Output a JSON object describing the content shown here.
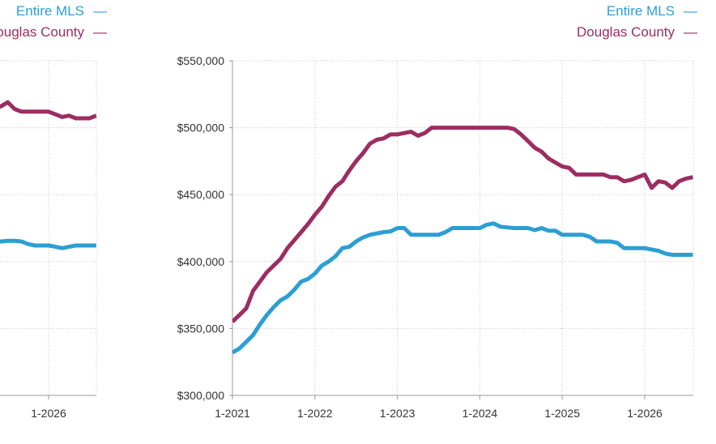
{
  "colors": {
    "entire_mls": "#2b9fd3",
    "douglas_county": "#9b2d62",
    "grid": "#c8c8c8",
    "axis": "#999999"
  },
  "chart_data": [
    {
      "type": "line",
      "title": "",
      "xlabel": "",
      "ylabel": "",
      "legend_position": "top-right",
      "legend": [
        {
          "name": "Entire MLS",
          "symbol": "—"
        },
        {
          "name": "Douglas County",
          "symbol": "—"
        }
      ],
      "x_ticks": [
        "1-2026"
      ],
      "grid": true,
      "series": [
        {
          "name": "Entire MLS",
          "x": [
            "2025-03",
            "2025-04",
            "2025-05",
            "2025-06",
            "2025-07",
            "2025-08",
            "2025-09",
            "2025-10",
            "2025-11",
            "2025-12",
            "2026-01",
            "2026-02",
            "2026-03",
            "2026-04",
            "2026-05",
            "2026-06",
            "2026-07",
            "2026-08"
          ],
          "values": [
            415000,
            415000,
            414000,
            415000,
            415500,
            415500,
            415000,
            413000,
            412000,
            412000,
            412000,
            411000,
            410000,
            411000,
            412000,
            412000,
            412000,
            412000
          ]
        },
        {
          "name": "Douglas County",
          "x": [
            "2025-03",
            "2025-04",
            "2025-05",
            "2025-06",
            "2025-07",
            "2025-08",
            "2025-09",
            "2025-10",
            "2025-11",
            "2025-12",
            "2026-01",
            "2026-02",
            "2026-03",
            "2026-04",
            "2026-05",
            "2026-06",
            "2026-07",
            "2026-08"
          ],
          "values": [
            515000,
            514000,
            514000,
            516000,
            519000,
            514000,
            512000,
            512000,
            512000,
            512000,
            512000,
            510000,
            508000,
            509000,
            507000,
            507000,
            507000,
            509000
          ]
        }
      ]
    },
    {
      "type": "line",
      "title": "",
      "xlabel": "",
      "ylabel": "",
      "legend_position": "top-right",
      "legend": [
        {
          "name": "Entire MLS",
          "symbol": "—"
        },
        {
          "name": "Douglas County",
          "symbol": "—"
        }
      ],
      "ylim": [
        300000,
        550000
      ],
      "y_ticks": [
        300000,
        350000,
        400000,
        450000,
        500000,
        550000
      ],
      "y_tick_labels": [
        "$300,000",
        "$350,000",
        "$400,000",
        "$450,000",
        "$500,000",
        "$550,000"
      ],
      "x_ticks": [
        "1-2021",
        "1-2022",
        "1-2023",
        "1-2024",
        "1-2025",
        "1-2026"
      ],
      "grid": true,
      "series": [
        {
          "name": "Entire MLS",
          "x": [
            "2021-01",
            "2021-02",
            "2021-03",
            "2021-04",
            "2021-05",
            "2021-06",
            "2021-07",
            "2021-08",
            "2021-09",
            "2021-10",
            "2021-11",
            "2021-12",
            "2022-01",
            "2022-02",
            "2022-03",
            "2022-04",
            "2022-05",
            "2022-06",
            "2022-07",
            "2022-08",
            "2022-09",
            "2022-10",
            "2022-11",
            "2022-12",
            "2023-01",
            "2023-02",
            "2023-03",
            "2023-04",
            "2023-05",
            "2023-06",
            "2023-07",
            "2023-08",
            "2023-09",
            "2023-10",
            "2023-11",
            "2023-12",
            "2024-01",
            "2024-02",
            "2024-03",
            "2024-04",
            "2024-05",
            "2024-06",
            "2024-07",
            "2024-08",
            "2024-09",
            "2024-10",
            "2024-11",
            "2024-12",
            "2025-01",
            "2025-02",
            "2025-03",
            "2025-04",
            "2025-05",
            "2025-06",
            "2025-07",
            "2025-08",
            "2025-09",
            "2025-10",
            "2025-11",
            "2025-12",
            "2026-01",
            "2026-02",
            "2026-03",
            "2026-04",
            "2026-05",
            "2026-06",
            "2026-07",
            "2026-08"
          ],
          "values": [
            332000,
            335000,
            340000,
            345000,
            353000,
            360000,
            366000,
            371000,
            374000,
            379000,
            385000,
            387000,
            391000,
            397000,
            400000,
            404000,
            410000,
            411000,
            415000,
            418000,
            420000,
            421000,
            422000,
            422500,
            425000,
            425000,
            420000,
            420000,
            420000,
            420000,
            420000,
            422000,
            425000,
            425000,
            425000,
            425000,
            425000,
            427500,
            428500,
            426000,
            425500,
            425000,
            425000,
            425000,
            423500,
            425000,
            423000,
            423000,
            420000,
            420000,
            420000,
            420000,
            418500,
            415000,
            415000,
            415000,
            414000,
            410000,
            410000,
            410000,
            410000,
            409000,
            408000,
            406000,
            405000,
            405000,
            405000,
            405000
          ]
        },
        {
          "name": "Douglas County",
          "x": [
            "2021-01",
            "2021-02",
            "2021-03",
            "2021-04",
            "2021-05",
            "2021-06",
            "2021-07",
            "2021-08",
            "2021-09",
            "2021-10",
            "2021-11",
            "2021-12",
            "2022-01",
            "2022-02",
            "2022-03",
            "2022-04",
            "2022-05",
            "2022-06",
            "2022-07",
            "2022-08",
            "2022-09",
            "2022-10",
            "2022-11",
            "2022-12",
            "2023-01",
            "2023-02",
            "2023-03",
            "2023-04",
            "2023-05",
            "2023-06",
            "2023-07",
            "2023-08",
            "2023-09",
            "2023-10",
            "2023-11",
            "2023-12",
            "2024-01",
            "2024-02",
            "2024-03",
            "2024-04",
            "2024-05",
            "2024-06",
            "2024-07",
            "2024-08",
            "2024-09",
            "2024-10",
            "2024-11",
            "2024-12",
            "2025-01",
            "2025-02",
            "2025-03",
            "2025-04",
            "2025-05",
            "2025-06",
            "2025-07",
            "2025-08",
            "2025-09",
            "2025-10",
            "2025-11",
            "2025-12",
            "2026-01",
            "2026-02",
            "2026-03",
            "2026-04",
            "2026-05",
            "2026-06",
            "2026-07",
            "2026-08"
          ],
          "values": [
            355000,
            360000,
            365000,
            378000,
            385000,
            392000,
            397000,
            402000,
            410000,
            416000,
            422000,
            428000,
            435000,
            441000,
            449000,
            456000,
            460000,
            468000,
            475000,
            481000,
            488000,
            491000,
            492000,
            495000,
            495000,
            496000,
            497000,
            494000,
            496000,
            500000,
            500000,
            500000,
            500000,
            500000,
            500000,
            500000,
            500000,
            500000,
            500000,
            500000,
            500000,
            499000,
            495000,
            490000,
            485000,
            482000,
            477000,
            474000,
            471000,
            470000,
            465000,
            465000,
            465000,
            465000,
            465000,
            463000,
            463000,
            460000,
            461000,
            463000,
            465000,
            455000,
            460000,
            459000,
            455000,
            460000,
            462000,
            463000
          ]
        }
      ]
    }
  ]
}
